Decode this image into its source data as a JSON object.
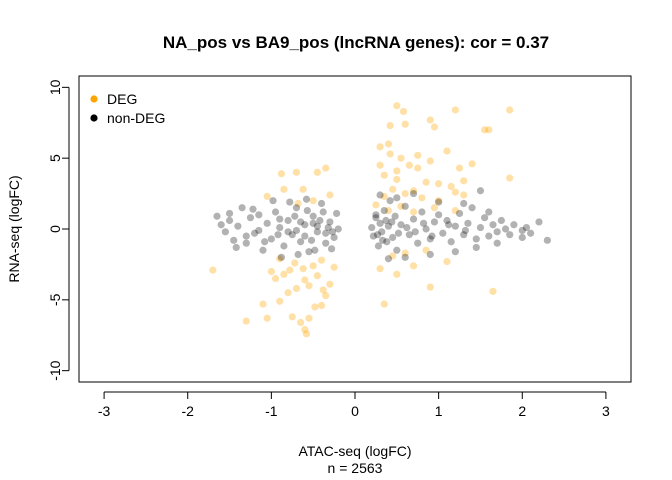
{
  "chart_data": {
    "type": "scatter",
    "title": "NA_pos vs BA9_pos (lncRNA genes): cor = 0.37",
    "xlabel": "ATAC-seq (logFC)",
    "subtitle": "n = 2563",
    "ylabel": "RNA-seq (logFC)",
    "xlim": [
      -3.3,
      3.3
    ],
    "ylim": [
      -10.8,
      10.8
    ],
    "xticks": [
      -3,
      -2,
      -1,
      0,
      1,
      2,
      3
    ],
    "yticks": [
      -10,
      -5,
      0,
      5,
      10
    ],
    "grid": false,
    "legend_position": "top-left",
    "series": [
      {
        "name": "DEG",
        "color": "#FFA500",
        "opacity": 0.35,
        "points": [
          [
            -1.7,
            -2.9
          ],
          [
            -1.3,
            -6.5
          ],
          [
            -1.05,
            -6.3
          ],
          [
            -1.1,
            -5.3
          ],
          [
            -0.9,
            -5.1
          ],
          [
            -0.75,
            -6.2
          ],
          [
            -0.65,
            -6.6
          ],
          [
            -0.6,
            -7.1
          ],
          [
            -0.58,
            -7.4
          ],
          [
            -0.55,
            -6.3
          ],
          [
            -0.48,
            -5.5
          ],
          [
            -0.4,
            -5.4
          ],
          [
            -0.35,
            -4.7
          ],
          [
            -0.8,
            -4.5
          ],
          [
            -0.7,
            -4.2
          ],
          [
            -0.95,
            -3.5
          ],
          [
            -0.85,
            -3.2
          ],
          [
            -0.6,
            -3.6
          ],
          [
            -0.45,
            -3.3
          ],
          [
            -0.3,
            -3.9
          ],
          [
            -0.5,
            -2.6
          ],
          [
            -0.72,
            -2.4
          ],
          [
            -0.9,
            -2.1
          ],
          [
            -0.4,
            -2.2
          ],
          [
            -0.25,
            -2.7
          ],
          [
            -1.0,
            -3.0
          ],
          [
            -0.78,
            -2.9
          ],
          [
            -0.62,
            -2.8
          ],
          [
            -0.55,
            -4.0
          ],
          [
            -0.38,
            -4.3
          ],
          [
            -0.7,
            4.0
          ],
          [
            -0.88,
            3.9
          ],
          [
            -0.45,
            4.0
          ],
          [
            -0.35,
            4.3
          ],
          [
            -0.85,
            2.8
          ],
          [
            -0.62,
            2.8
          ],
          [
            -1.05,
            2.3
          ],
          [
            -0.5,
            2.0
          ],
          [
            -0.68,
            1.8
          ],
          [
            -0.3,
            2.4
          ],
          [
            0.5,
            8.7
          ],
          [
            0.58,
            8.3
          ],
          [
            0.42,
            7.3
          ],
          [
            0.6,
            7.4
          ],
          [
            0.9,
            7.7
          ],
          [
            0.95,
            7.2
          ],
          [
            1.2,
            8.4
          ],
          [
            1.85,
            8.4
          ],
          [
            1.6,
            7.0
          ],
          [
            1.55,
            7.0
          ],
          [
            0.3,
            5.8
          ],
          [
            0.42,
            5.3
          ],
          [
            0.55,
            5.0
          ],
          [
            0.3,
            4.5
          ],
          [
            0.65,
            4.5
          ],
          [
            0.75,
            4.3
          ],
          [
            0.9,
            4.8
          ],
          [
            1.1,
            5.5
          ],
          [
            1.25,
            4.3
          ],
          [
            1.4,
            4.6
          ],
          [
            1.85,
            3.6
          ],
          [
            0.35,
            3.8
          ],
          [
            0.5,
            3.5
          ],
          [
            0.85,
            3.3
          ],
          [
            1.0,
            3.2
          ],
          [
            1.15,
            3.0
          ],
          [
            0.7,
            2.7
          ],
          [
            0.45,
            2.8
          ],
          [
            0.35,
            2.3
          ],
          [
            0.6,
            2.5
          ],
          [
            0.8,
            2.2
          ],
          [
            1.0,
            2.0
          ],
          [
            1.3,
            2.4
          ],
          [
            0.25,
            1.7
          ],
          [
            0.55,
            1.6
          ],
          [
            0.95,
            1.5
          ],
          [
            1.2,
            1.3
          ],
          [
            0.4,
            1.3
          ],
          [
            0.7,
            1.2
          ],
          [
            1.65,
            -4.4
          ],
          [
            0.35,
            -5.3
          ],
          [
            0.9,
            -4.1
          ],
          [
            0.5,
            -3.2
          ],
          [
            0.3,
            -2.8
          ],
          [
            0.7,
            -2.6
          ],
          [
            1.1,
            -2.3
          ],
          [
            0.45,
            -1.9
          ],
          [
            0.6,
            -1.7
          ],
          [
            0.85,
            -1.5
          ],
          [
            1.2,
            2.6
          ],
          [
            1.3,
            3.4
          ],
          [
            0.5,
            4.1
          ],
          [
            0.75,
            5.2
          ],
          [
            0.4,
            6.0
          ]
        ]
      },
      {
        "name": "non-DEG",
        "color": "#000000",
        "opacity": 0.3,
        "points": [
          [
            -1.6,
            0.3
          ],
          [
            -1.55,
            -0.2
          ],
          [
            -1.5,
            0.6
          ],
          [
            -1.45,
            -0.8
          ],
          [
            -1.4,
            0.2
          ],
          [
            -1.35,
            1.5
          ],
          [
            -1.3,
            -1.0
          ],
          [
            -1.25,
            0.8
          ],
          [
            -1.2,
            -0.3
          ],
          [
            -1.15,
            1.0
          ],
          [
            -1.1,
            -1.5
          ],
          [
            -1.05,
            0.4
          ],
          [
            -1.0,
            -0.7
          ],
          [
            -0.95,
            1.2
          ],
          [
            -0.9,
            0.1
          ],
          [
            -0.85,
            -1.2
          ],
          [
            -0.8,
            0.6
          ],
          [
            -0.75,
            -0.4
          ],
          [
            -0.7,
            1.5
          ],
          [
            -0.65,
            -0.9
          ],
          [
            -0.6,
            0.3
          ],
          [
            -0.55,
            -1.6
          ],
          [
            -0.5,
            0.9
          ],
          [
            -0.45,
            -0.2
          ],
          [
            -0.4,
            1.8
          ],
          [
            -0.35,
            -1.0
          ],
          [
            -0.3,
            0.5
          ],
          [
            -0.25,
            -0.6
          ],
          [
            -0.22,
            1.1
          ],
          [
            -0.2,
            0.0
          ],
          [
            -1.65,
            0.9
          ],
          [
            -1.42,
            -1.3
          ],
          [
            -1.22,
            1.4
          ],
          [
            -1.08,
            -0.9
          ],
          [
            -0.98,
            2.0
          ],
          [
            -0.88,
            -2.0
          ],
          [
            -0.78,
            1.9
          ],
          [
            -0.68,
            -1.8
          ],
          [
            -0.58,
            2.1
          ],
          [
            -0.48,
            -1.5
          ],
          [
            -0.38,
            1.2
          ],
          [
            -0.28,
            -1.4
          ],
          [
            -0.9,
            0.7
          ],
          [
            -0.7,
            -0.1
          ],
          [
            -0.5,
            0.4
          ],
          [
            -0.6,
            -0.5
          ],
          [
            -0.45,
            0.2
          ],
          [
            -0.35,
            -0.3
          ],
          [
            -0.8,
            -0.2
          ],
          [
            -0.65,
            0.5
          ],
          [
            -1.3,
            -0.5
          ],
          [
            -1.5,
            1.1
          ],
          [
            -1.15,
            -0.1
          ],
          [
            -0.92,
            -0.4
          ],
          [
            -0.72,
            0.9
          ],
          [
            -0.52,
            -0.8
          ],
          [
            -0.42,
            0.6
          ],
          [
            -0.32,
            0.1
          ],
          [
            -0.27,
            -0.2
          ],
          [
            -0.57,
            1.3
          ],
          [
            0.2,
            0.1
          ],
          [
            0.22,
            -0.5
          ],
          [
            0.25,
            0.8
          ],
          [
            0.28,
            -1.2
          ],
          [
            0.3,
            0.4
          ],
          [
            0.32,
            -0.2
          ],
          [
            0.35,
            1.3
          ],
          [
            0.38,
            -0.9
          ],
          [
            0.4,
            0.2
          ],
          [
            0.42,
            2.0
          ],
          [
            0.45,
            -0.6
          ],
          [
            0.48,
            0.9
          ],
          [
            0.5,
            -1.5
          ],
          [
            0.55,
            0.3
          ],
          [
            0.6,
            1.6
          ],
          [
            0.65,
            -0.4
          ],
          [
            0.7,
            0.7
          ],
          [
            0.75,
            -1.0
          ],
          [
            0.8,
            1.2
          ],
          [
            0.85,
            0.0
          ],
          [
            0.9,
            -0.7
          ],
          [
            0.95,
            0.5
          ],
          [
            1.0,
            1.0
          ],
          [
            1.05,
            -0.3
          ],
          [
            1.1,
            0.6
          ],
          [
            1.15,
            -0.9
          ],
          [
            1.2,
            0.2
          ],
          [
            1.25,
            1.1
          ],
          [
            1.3,
            -0.4
          ],
          [
            1.35,
            0.4
          ],
          [
            1.4,
            1.5
          ],
          [
            1.45,
            -0.7
          ],
          [
            1.5,
            0.1
          ],
          [
            1.55,
            0.8
          ],
          [
            1.6,
            -0.5
          ],
          [
            1.65,
            0.3
          ],
          [
            1.7,
            -0.2
          ],
          [
            1.75,
            0.6
          ],
          [
            1.8,
            0.0
          ],
          [
            1.85,
            -0.4
          ],
          [
            1.9,
            0.3
          ],
          [
            2.0,
            -0.1
          ],
          [
            2.05,
            0.1
          ],
          [
            2.1,
            -0.3
          ],
          [
            2.2,
            0.5
          ],
          [
            2.3,
            -0.8
          ],
          [
            0.3,
            2.4
          ],
          [
            0.5,
            2.2
          ],
          [
            0.7,
            2.5
          ],
          [
            1.0,
            1.9
          ],
          [
            1.3,
            1.8
          ],
          [
            1.5,
            2.7
          ],
          [
            1.6,
            1.2
          ],
          [
            0.4,
            -2.1
          ],
          [
            0.6,
            -2.0
          ],
          [
            0.9,
            -1.8
          ],
          [
            1.2,
            -1.6
          ],
          [
            1.45,
            -1.3
          ],
          [
            1.7,
            -1.0
          ],
          [
            2.0,
            -0.6
          ],
          [
            0.25,
            1.0
          ],
          [
            0.33,
            -0.8
          ],
          [
            0.44,
            0.5
          ],
          [
            0.52,
            -0.3
          ],
          [
            0.62,
            0.1
          ],
          [
            0.72,
            -0.2
          ],
          [
            0.82,
            0.4
          ],
          [
            0.92,
            -0.5
          ],
          [
            1.12,
            0.3
          ],
          [
            1.32,
            -0.1
          ],
          [
            0.27,
            -0.4
          ],
          [
            0.37,
            0.6
          ]
        ]
      }
    ]
  },
  "legend": {
    "items": [
      {
        "label": "DEG",
        "color": "#FFA500"
      },
      {
        "label": "non-DEG",
        "color": "#000000"
      }
    ]
  }
}
